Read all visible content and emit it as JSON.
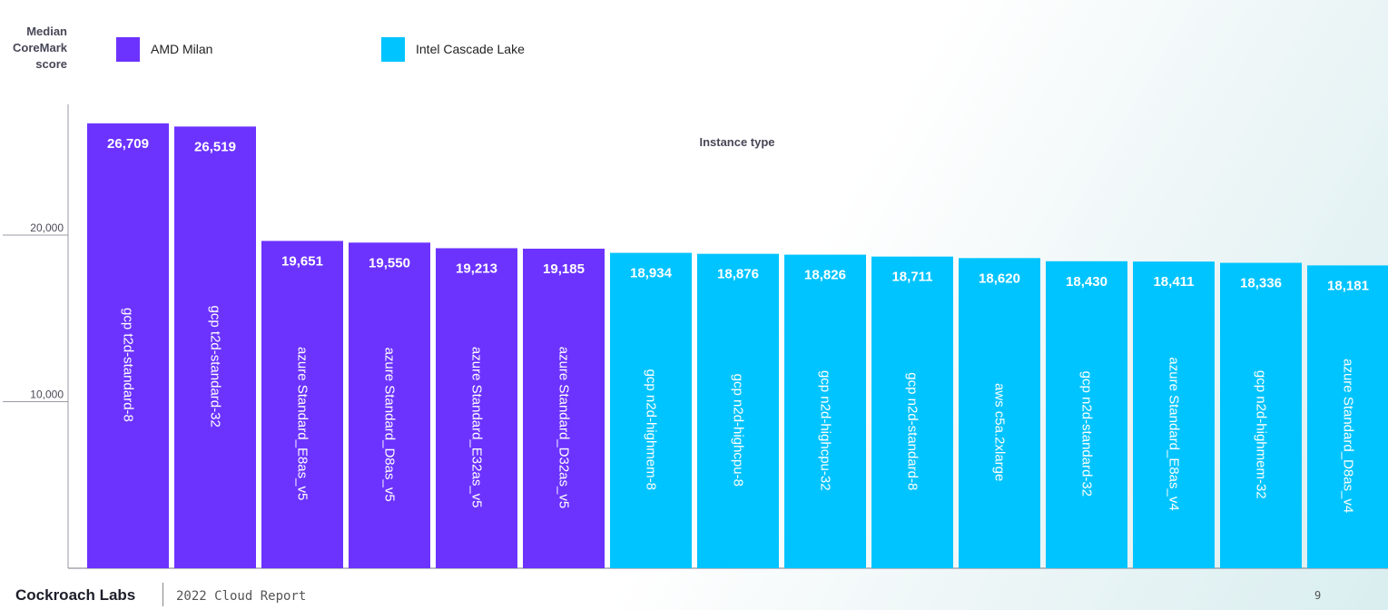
{
  "chart_data": {
    "type": "bar",
    "title": "",
    "xlabel": "Instance type",
    "ylabel": "Median CoreMark score",
    "ylabel_lines": [
      "Median",
      "CoreMark",
      "score"
    ],
    "ylim": [
      0,
      28000
    ],
    "yticks": [
      10000,
      20000
    ],
    "ytick_labels": [
      "10,000",
      "20,000"
    ],
    "grid": false,
    "legend_position": "top",
    "categories": [
      "gcp t2d-standard-8",
      "gcp t2d-standard-32",
      "azure Standard_E8as_v5",
      "azure Standard_D8as_v5",
      "azure Standard_E32as_v5",
      "azure Standard_D32as_v5",
      "gcp n2d-highmem-8",
      "gcp n2d-highcpu-8",
      "gcp n2d-highcpu-32",
      "gcp n2d-standard-8",
      "aws c5a.2xlarge",
      "gcp n2d-standard-32",
      "azure Standard_E8as_v4",
      "gcp n2d-highmem-32",
      "azure Standard_D8as_v4"
    ],
    "values": [
      26709,
      26519,
      19651,
      19550,
      19213,
      19185,
      18934,
      18876,
      18826,
      18711,
      18620,
      18430,
      18411,
      18336,
      18181
    ],
    "value_labels": [
      "26,709",
      "26,519",
      "19,651",
      "19,550",
      "19,213",
      "19,185",
      "18,934",
      "18,876",
      "18,826",
      "18,711",
      "18,620",
      "18,430",
      "18,411",
      "18,336",
      "18,181"
    ],
    "bar_series": [
      "AMD Milan",
      "AMD Milan",
      "AMD Milan",
      "AMD Milan",
      "AMD Milan",
      "AMD Milan",
      "Intel Cascade Lake",
      "Intel Cascade Lake",
      "Intel Cascade Lake",
      "Intel Cascade Lake",
      "Intel Cascade Lake",
      "Intel Cascade Lake",
      "Intel Cascade Lake",
      "Intel Cascade Lake",
      "Intel Cascade Lake"
    ],
    "series": [
      {
        "name": "AMD Milan",
        "color": "#6c33ff"
      },
      {
        "name": "Intel Cascade Lake",
        "color": "#00c4ff"
      }
    ]
  },
  "footer": {
    "brand": "Cockroach Labs",
    "report": "2022 Cloud Report",
    "page": "9"
  },
  "colors": {
    "axis": "#9a9aa5",
    "tick_text": "#4a4a55",
    "bar_text": "#ffffff"
  }
}
